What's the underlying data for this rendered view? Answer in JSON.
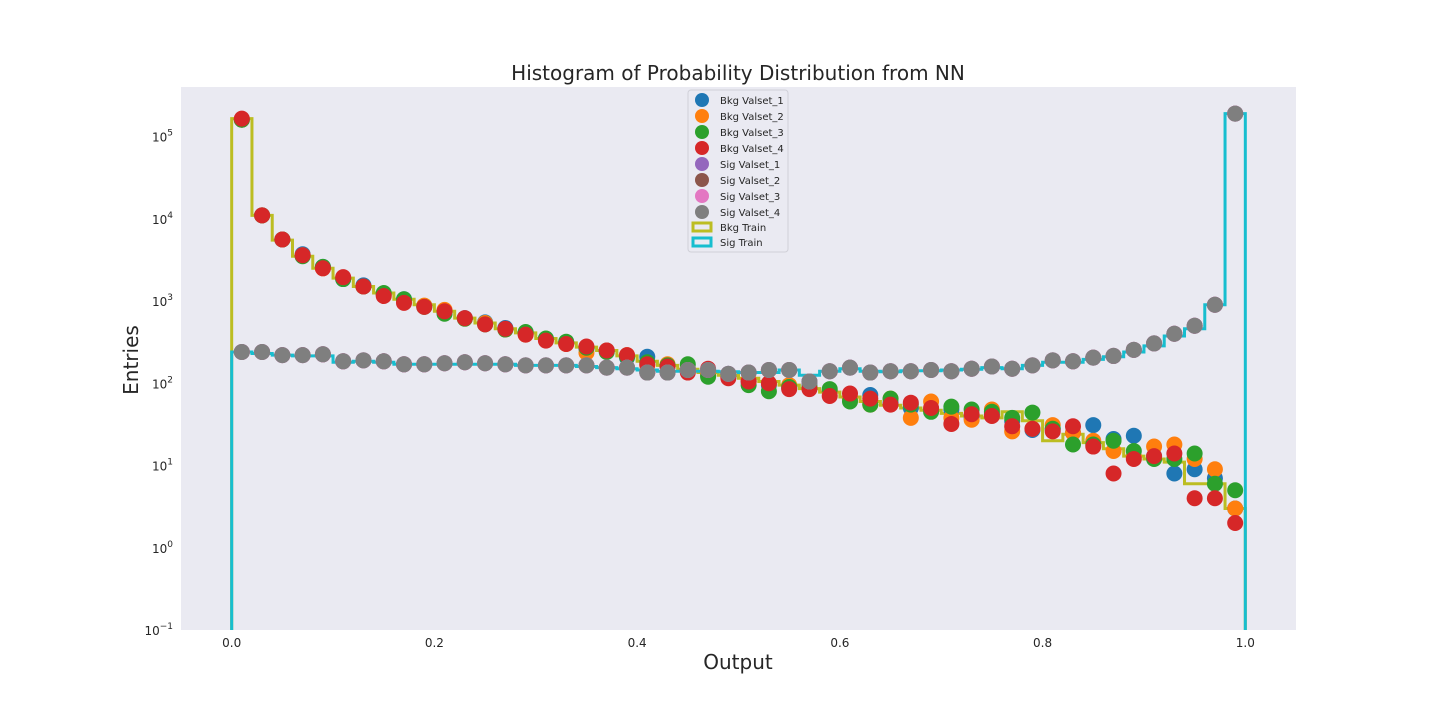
{
  "chart_data": {
    "type": "scatter",
    "title": "Histogram of Probability Distribution from NN",
    "xlabel": "Output",
    "ylabel": "Entries",
    "xlim": [
      -0.05,
      1.05
    ],
    "ylim": [
      0.1,
      400000
    ],
    "yscale": "log",
    "grid": false,
    "legend_position": "upper center",
    "x_ticks": [
      0.0,
      0.2,
      0.4,
      0.6,
      0.8,
      1.0
    ],
    "x_tick_labels": [
      "0.0",
      "0.2",
      "0.4",
      "0.6",
      "0.8",
      "1.0"
    ],
    "y_ticks": [
      0.1,
      1,
      10,
      100,
      1000,
      10000,
      100000
    ],
    "y_tick_labels": [
      {
        "base": "10",
        "exp": "−1"
      },
      {
        "base": "10",
        "exp": "0"
      },
      {
        "base": "10",
        "exp": "1"
      },
      {
        "base": "10",
        "exp": "2"
      },
      {
        "base": "10",
        "exp": "3"
      },
      {
        "base": "10",
        "exp": "4"
      },
      {
        "base": "10",
        "exp": "5"
      }
    ],
    "x": [
      0.01,
      0.03,
      0.05,
      0.07,
      0.09,
      0.11,
      0.13,
      0.15,
      0.17,
      0.19,
      0.21,
      0.23,
      0.25,
      0.27,
      0.29,
      0.31,
      0.33,
      0.35,
      0.37,
      0.39,
      0.41,
      0.43,
      0.45,
      0.47,
      0.49,
      0.51,
      0.53,
      0.55,
      0.57,
      0.59,
      0.61,
      0.63,
      0.65,
      0.67,
      0.69,
      0.71,
      0.73,
      0.75,
      0.77,
      0.79,
      0.81,
      0.83,
      0.85,
      0.87,
      0.89,
      0.91,
      0.93,
      0.95,
      0.97,
      0.99
    ],
    "hist_series": [
      {
        "name": "Bkg Train",
        "color": "#bcbd22",
        "values": [
          165000,
          11000,
          5500,
          3500,
          2500,
          1900,
          1500,
          1250,
          1050,
          900,
          750,
          620,
          540,
          460,
          410,
          350,
          310,
          275,
          250,
          215,
          185,
          165,
          148,
          135,
          125,
          115,
          105,
          95,
          86,
          78,
          68,
          60,
          54,
          50,
          47,
          43,
          40,
          38,
          45,
          35,
          20,
          24,
          19,
          16,
          13,
          12,
          11,
          6,
          6,
          3
        ]
      },
      {
        "name": "Sig Train",
        "color": "#17becf",
        "values": [
          240,
          230,
          220,
          215,
          215,
          180,
          185,
          180,
          170,
          170,
          170,
          170,
          170,
          170,
          165,
          165,
          165,
          160,
          155,
          150,
          145,
          140,
          140,
          140,
          138,
          135,
          135,
          145,
          125,
          140,
          150,
          140,
          138,
          142,
          142,
          145,
          148,
          155,
          150,
          165,
          180,
          180,
          195,
          210,
          240,
          285,
          375,
          460,
          900,
          190000
        ]
      }
    ],
    "series": [
      {
        "name": "Bkg Valset_1",
        "color": "#1f77b4",
        "values": [
          160000,
          11000,
          5600,
          3700,
          2600,
          1850,
          1550,
          1200,
          1050,
          870,
          740,
          620,
          550,
          470,
          410,
          345,
          310,
          265,
          250,
          205,
          210,
          160,
          150,
          125,
          130,
          105,
          95,
          88,
          100,
          80,
          65,
          72,
          58,
          50,
          48,
          48,
          38,
          42,
          35,
          27,
          28,
          25,
          31,
          21,
          23,
          13,
          8,
          9,
          7,
          3
        ]
      },
      {
        "name": "Bkg Valset_2",
        "color": "#ff7f0e",
        "values": [
          160000,
          11000,
          5600,
          3600,
          2500,
          1900,
          1500,
          1200,
          1000,
          880,
          780,
          610,
          540,
          450,
          390,
          340,
          300,
          235,
          250,
          220,
          165,
          170,
          150,
          130,
          120,
          110,
          100,
          95,
          90,
          80,
          65,
          55,
          65,
          38,
          60,
          38,
          36,
          48,
          26,
          28,
          31,
          25,
          20,
          15,
          13,
          17,
          18,
          12,
          9,
          3
        ]
      },
      {
        "name": "Bkg Valset_3",
        "color": "#2ca02c",
        "values": [
          160000,
          11000,
          5600,
          3500,
          2600,
          1850,
          1500,
          1250,
          1050,
          850,
          700,
          610,
          520,
          450,
          420,
          350,
          320,
          270,
          240,
          210,
          180,
          165,
          170,
          120,
          120,
          95,
          80,
          90,
          90,
          85,
          60,
          55,
          65,
          55,
          45,
          52,
          48,
          45,
          38,
          44,
          28,
          18,
          18,
          20,
          15,
          12,
          12,
          14,
          6,
          5
        ]
      },
      {
        "name": "Bkg Valset_4",
        "color": "#d62728",
        "values": [
          165000,
          11000,
          5600,
          3600,
          2500,
          1950,
          1500,
          1150,
          950,
          850,
          750,
          620,
          520,
          460,
          390,
          330,
          300,
          280,
          250,
          220,
          170,
          160,
          135,
          150,
          115,
          105,
          100,
          85,
          85,
          70,
          75,
          65,
          55,
          58,
          50,
          32,
          42,
          40,
          30,
          28,
          26,
          30,
          17,
          8,
          12,
          13,
          14,
          4,
          4,
          2
        ]
      },
      {
        "name": "Sig Valset_1",
        "color": "#9467bd",
        "values": [
          240,
          240,
          220,
          220,
          225,
          185,
          190,
          185,
          170,
          170,
          175,
          180,
          175,
          170,
          165,
          165,
          165,
          165,
          155,
          155,
          135,
          135,
          145,
          145,
          130,
          135,
          145,
          145,
          105,
          140,
          155,
          135,
          140,
          140,
          145,
          140,
          150,
          160,
          150,
          165,
          190,
          185,
          205,
          215,
          255,
          305,
          400,
          500,
          900,
          190000
        ]
      },
      {
        "name": "Sig Valset_2",
        "color": "#8c564b",
        "values": [
          240,
          240,
          220,
          220,
          225,
          185,
          190,
          185,
          170,
          170,
          175,
          180,
          175,
          170,
          165,
          165,
          165,
          165,
          155,
          155,
          135,
          135,
          145,
          145,
          130,
          135,
          145,
          145,
          105,
          140,
          155,
          135,
          140,
          140,
          145,
          140,
          150,
          160,
          150,
          165,
          190,
          185,
          205,
          215,
          255,
          305,
          400,
          500,
          900,
          190000
        ]
      },
      {
        "name": "Sig Valset_3",
        "color": "#e377c2",
        "values": [
          240,
          240,
          220,
          220,
          225,
          185,
          190,
          185,
          170,
          170,
          175,
          180,
          175,
          170,
          165,
          165,
          165,
          165,
          155,
          155,
          135,
          135,
          145,
          145,
          130,
          135,
          145,
          145,
          105,
          140,
          155,
          135,
          140,
          140,
          145,
          140,
          150,
          160,
          150,
          165,
          190,
          185,
          205,
          215,
          255,
          305,
          400,
          500,
          900,
          190000
        ]
      },
      {
        "name": "Sig Valset_4",
        "color": "#7f7f7f",
        "values": [
          240,
          240,
          220,
          220,
          225,
          185,
          190,
          185,
          170,
          170,
          175,
          180,
          175,
          170,
          165,
          165,
          165,
          165,
          155,
          155,
          135,
          135,
          145,
          145,
          130,
          135,
          145,
          145,
          105,
          140,
          155,
          135,
          140,
          140,
          145,
          140,
          150,
          160,
          150,
          165,
          190,
          185,
          205,
          215,
          255,
          305,
          400,
          500,
          900,
          190000
        ]
      }
    ]
  }
}
